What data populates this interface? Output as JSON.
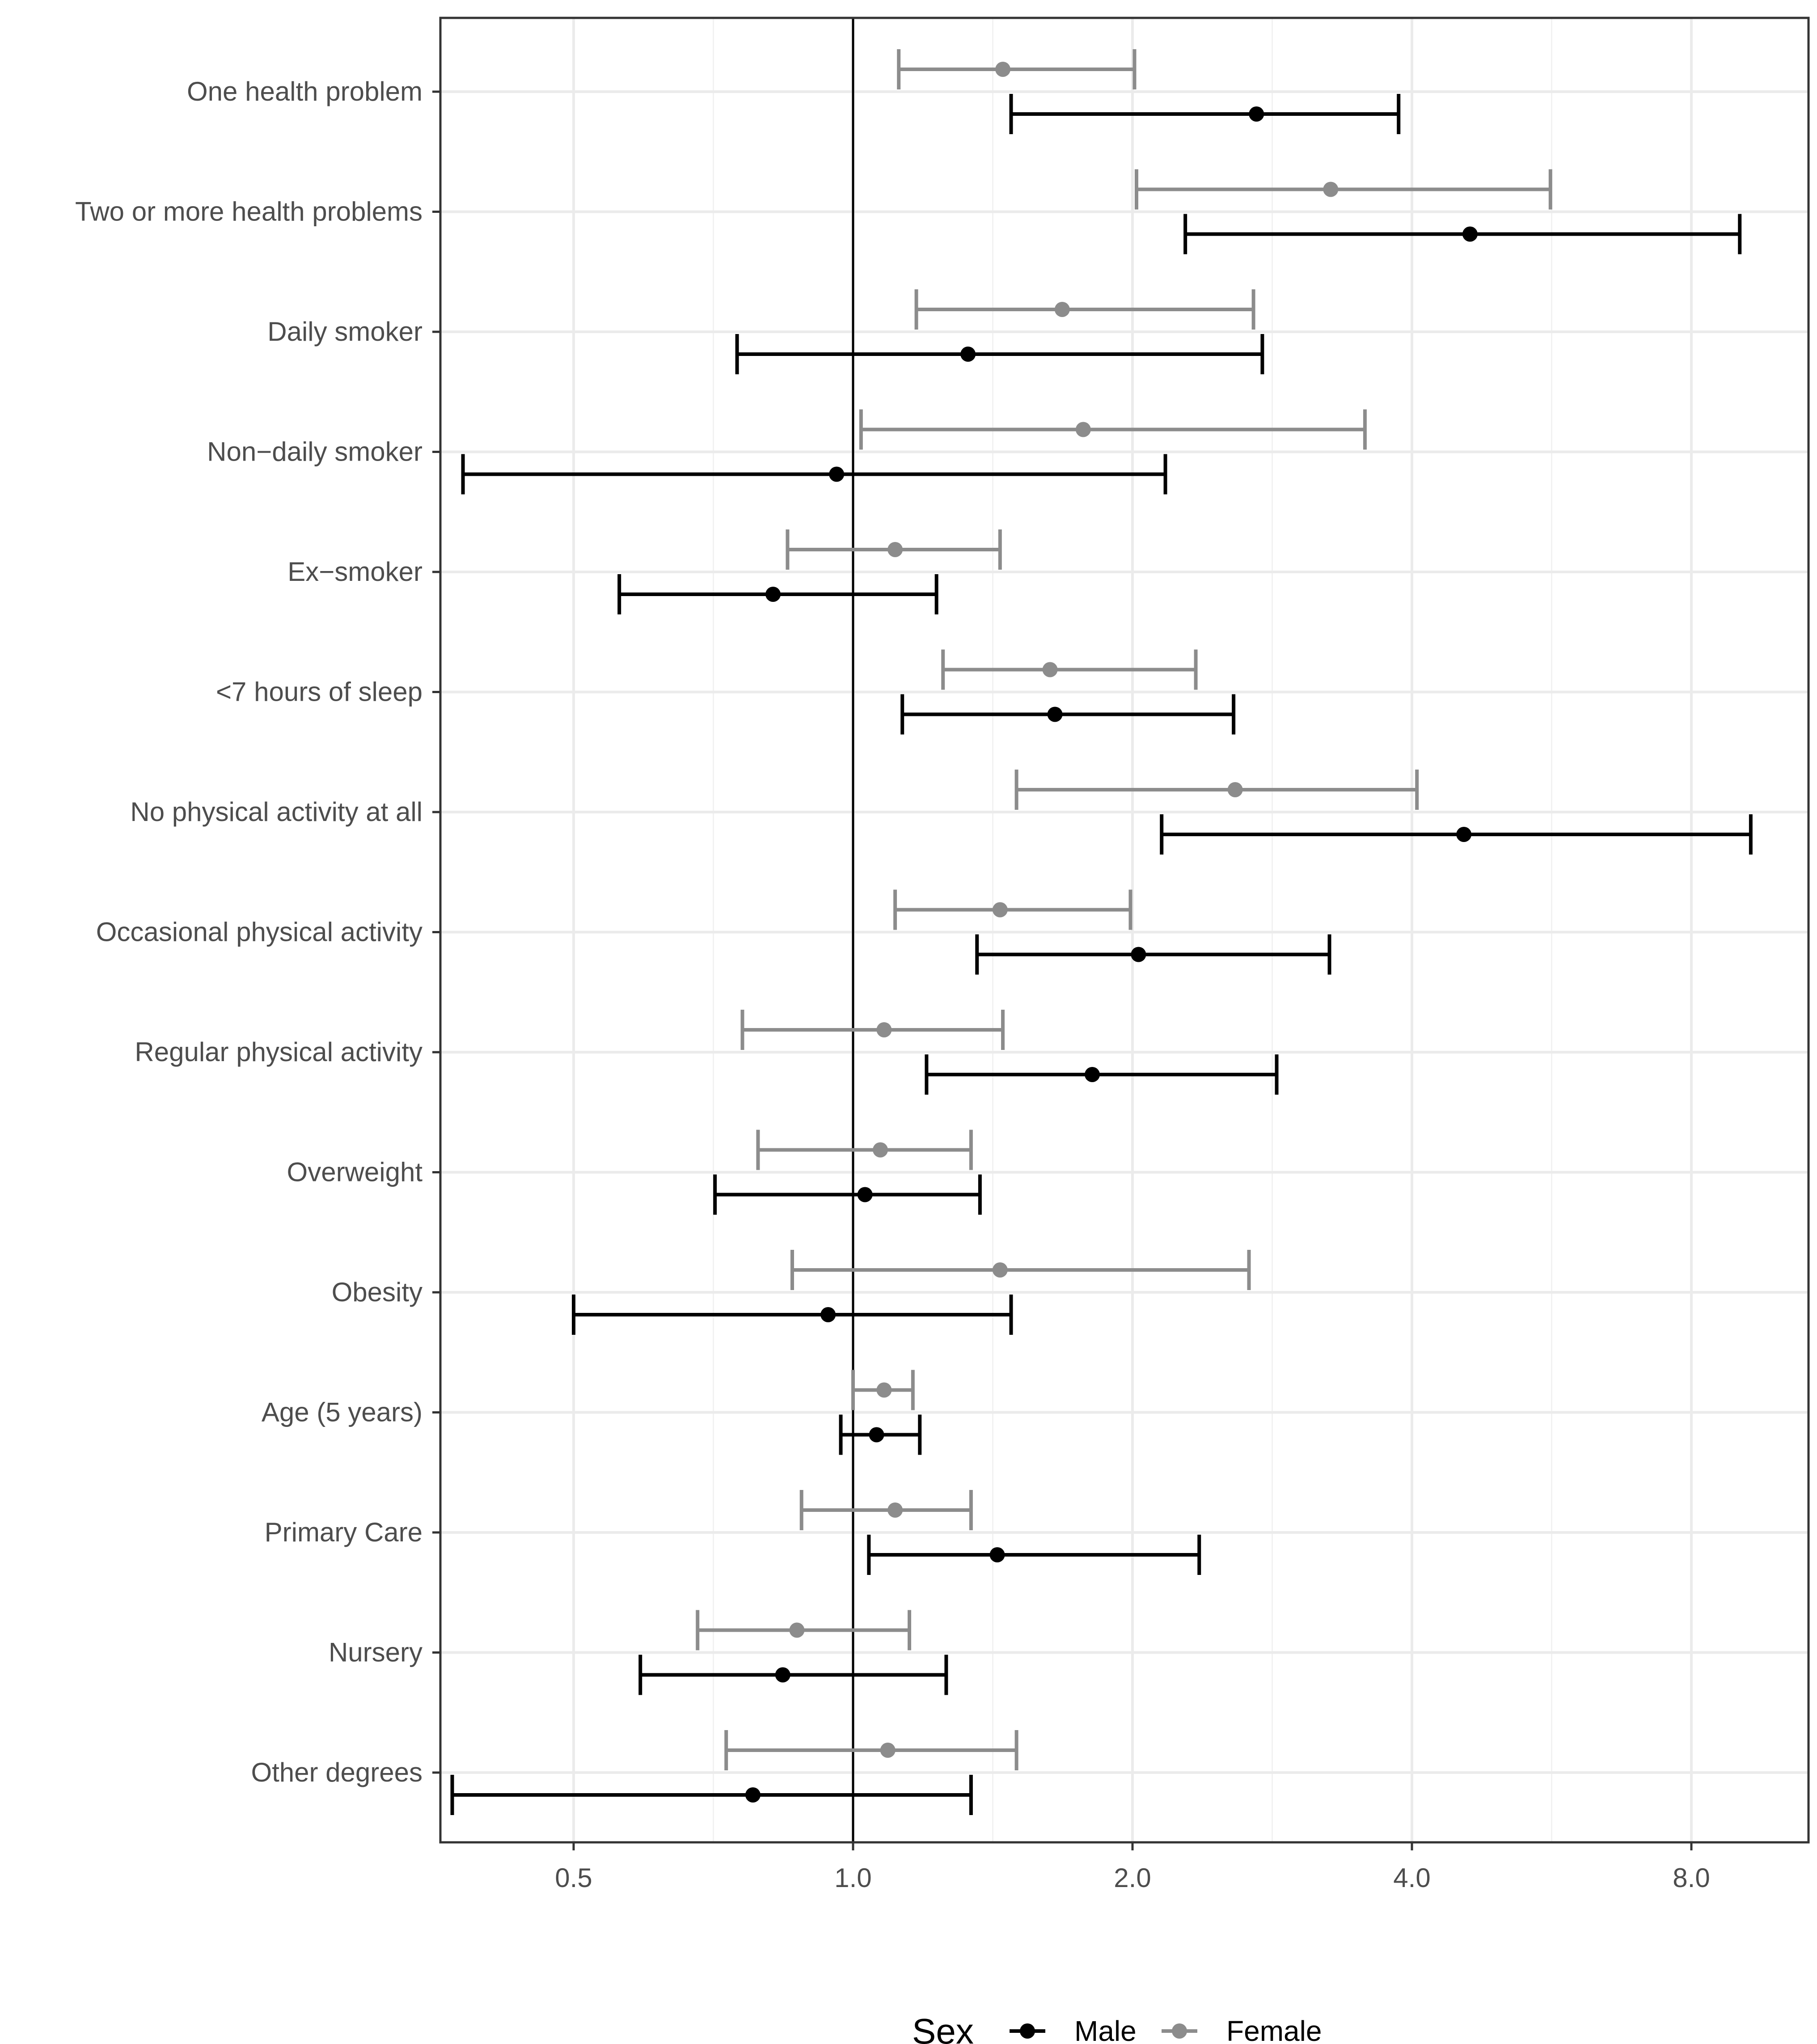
{
  "chart_data": {
    "type": "scatter",
    "subtype": "forest-plot",
    "x_scale": "log2",
    "xlim": [
      0.35,
      10.5
    ],
    "reference_line": 1.0,
    "grid": true,
    "legend_position": "bottom",
    "x_ticks": [
      {
        "value": 0.5,
        "label": "0.5"
      },
      {
        "value": 1.0,
        "label": "1.0"
      },
      {
        "value": 2.0,
        "label": "2.0"
      },
      {
        "value": 4.0,
        "label": "4.0"
      },
      {
        "value": 8.0,
        "label": "8.0"
      }
    ],
    "categories": [
      "One health problem",
      "Two or more health problems",
      "Daily smoker",
      "Non−daily smoker",
      "Ex−smoker",
      "<7 hours of sleep",
      "No physical activity at all",
      "Occasional physical activity",
      "Regular physical activity",
      "Overweight",
      "Obesity",
      "Age (5 years)",
      "Primary Care",
      "Nursery",
      "Other degrees"
    ],
    "legend": {
      "title": "Sex"
    },
    "series": [
      {
        "name": "Male",
        "color": "#000000",
        "points": [
          {
            "est": 2.72,
            "lo": 1.48,
            "hi": 3.87
          },
          {
            "est": 4.62,
            "lo": 2.28,
            "hi": 9.02
          },
          {
            "est": 1.33,
            "lo": 0.75,
            "hi": 2.76
          },
          {
            "est": 0.96,
            "lo": 0.38,
            "hi": 2.17
          },
          {
            "est": 0.82,
            "lo": 0.56,
            "hi": 1.23
          },
          {
            "est": 1.65,
            "lo": 1.13,
            "hi": 2.57
          },
          {
            "est": 4.55,
            "lo": 2.15,
            "hi": 9.27
          },
          {
            "est": 2.03,
            "lo": 1.36,
            "hi": 3.26
          },
          {
            "est": 1.81,
            "lo": 1.2,
            "hi": 2.86
          },
          {
            "est": 1.03,
            "lo": 0.71,
            "hi": 1.37
          },
          {
            "est": 0.94,
            "lo": 0.5,
            "hi": 1.48
          },
          {
            "est": 1.06,
            "lo": 0.97,
            "hi": 1.18
          },
          {
            "est": 1.43,
            "lo": 1.04,
            "hi": 2.36
          },
          {
            "est": 0.84,
            "lo": 0.59,
            "hi": 1.26
          },
          {
            "est": 0.78,
            "lo": 0.37,
            "hi": 1.34
          }
        ]
      },
      {
        "name": "Female",
        "color": "#8c8c8c",
        "points": [
          {
            "est": 1.45,
            "lo": 1.12,
            "hi": 2.01
          },
          {
            "est": 3.27,
            "lo": 2.02,
            "hi": 5.64
          },
          {
            "est": 1.68,
            "lo": 1.17,
            "hi": 2.7
          },
          {
            "est": 1.77,
            "lo": 1.02,
            "hi": 3.56
          },
          {
            "est": 1.11,
            "lo": 0.85,
            "hi": 1.44
          },
          {
            "est": 1.63,
            "lo": 1.25,
            "hi": 2.34
          },
          {
            "est": 2.58,
            "lo": 1.5,
            "hi": 4.05
          },
          {
            "est": 1.44,
            "lo": 1.11,
            "hi": 1.99
          },
          {
            "est": 1.08,
            "lo": 0.76,
            "hi": 1.45
          },
          {
            "est": 1.07,
            "lo": 0.79,
            "hi": 1.34
          },
          {
            "est": 1.44,
            "lo": 0.86,
            "hi": 2.67
          },
          {
            "est": 1.08,
            "lo": 1.0,
            "hi": 1.16
          },
          {
            "est": 1.11,
            "lo": 0.88,
            "hi": 1.34
          },
          {
            "est": 0.87,
            "lo": 0.68,
            "hi": 1.15
          },
          {
            "est": 1.09,
            "lo": 0.73,
            "hi": 1.5
          }
        ]
      }
    ]
  }
}
